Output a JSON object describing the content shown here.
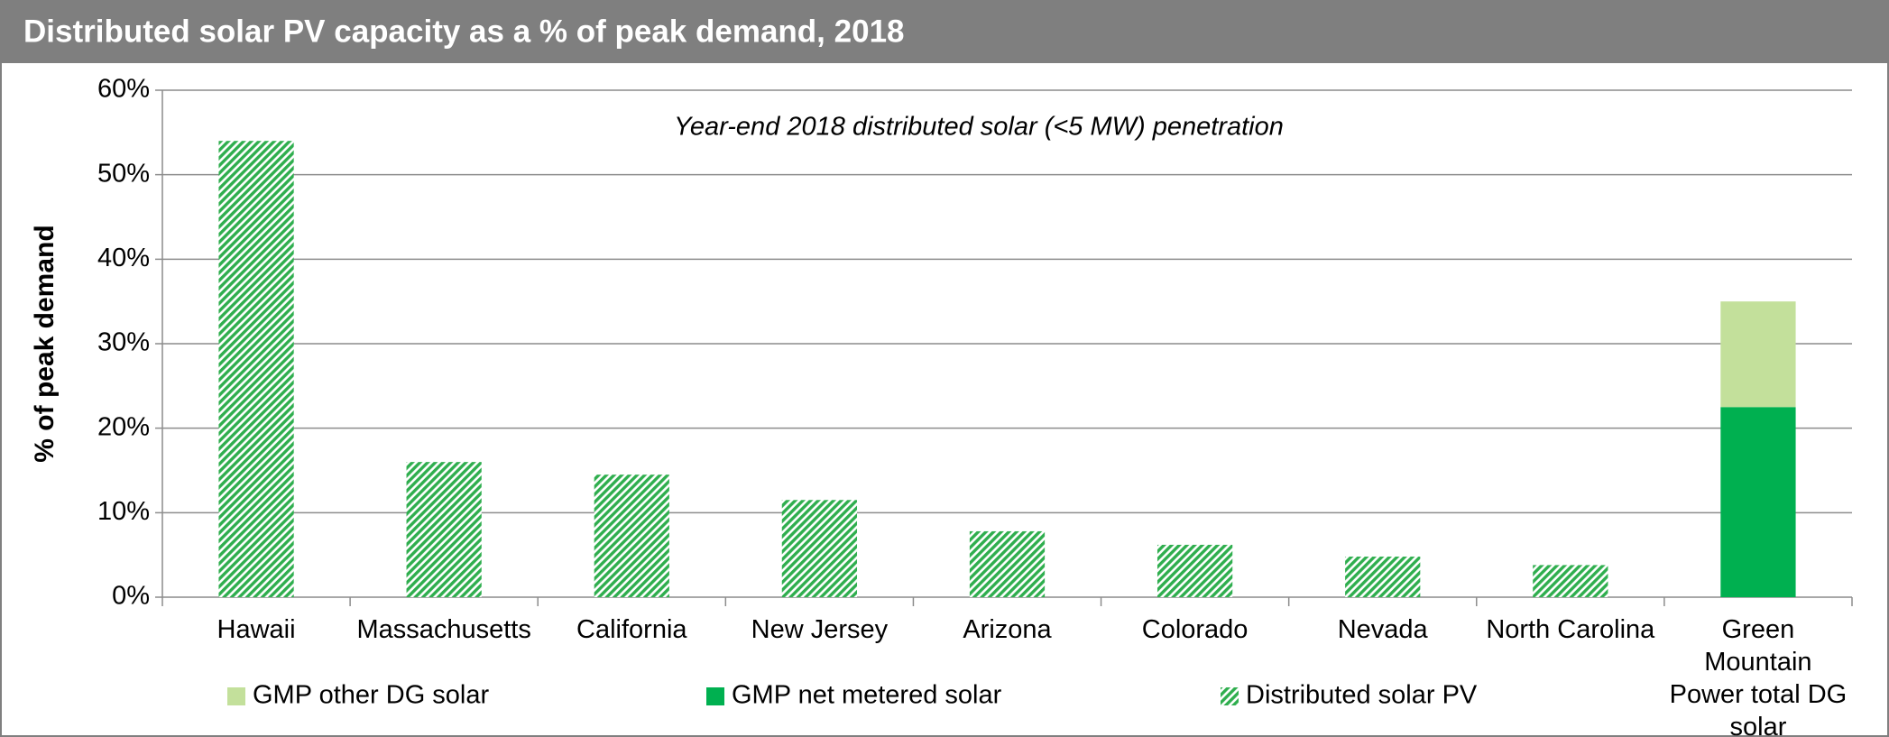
{
  "chart_data": {
    "type": "stacked_bar",
    "title": "Distributed solar PV capacity as a % of peak demand, 2018",
    "annotation": "Year-end 2018 distributed solar (<5 MW) penetration",
    "y_label": "% of peak demand",
    "categories": [
      "Hawaii",
      "Massachusetts",
      "California",
      "New Jersey",
      "Arizona",
      "Colorado",
      "Nevada",
      "North Carolina",
      "Green Mountain Power total DG solar"
    ],
    "series": [
      {
        "name": "Distributed solar PV",
        "color": "#2fae4e",
        "pattern": "hatch",
        "values": [
          54,
          16,
          14.5,
          11.5,
          7.8,
          6.2,
          4.8,
          3.8,
          null
        ]
      },
      {
        "name": "GMP net metered solar",
        "color": "#00b050",
        "values": [
          null,
          null,
          null,
          null,
          null,
          null,
          null,
          null,
          22.5
        ]
      },
      {
        "name": "GMP other DG solar",
        "color": "#c3e09b",
        "values": [
          null,
          null,
          null,
          null,
          null,
          null,
          null,
          null,
          12.5
        ]
      }
    ],
    "legend_order": [
      2,
      1,
      0
    ],
    "legend": "bottom",
    "ylim": [
      0,
      60
    ],
    "yticks": [
      {
        "value": 0,
        "label": "0%"
      },
      {
        "value": 10,
        "label": "10%"
      },
      {
        "value": 20,
        "label": "20%"
      },
      {
        "value": 30,
        "label": "30%"
      },
      {
        "value": 40,
        "label": "40%"
      },
      {
        "value": 50,
        "label": "50%"
      },
      {
        "value": 60,
        "label": "60%"
      }
    ],
    "grid": true
  }
}
